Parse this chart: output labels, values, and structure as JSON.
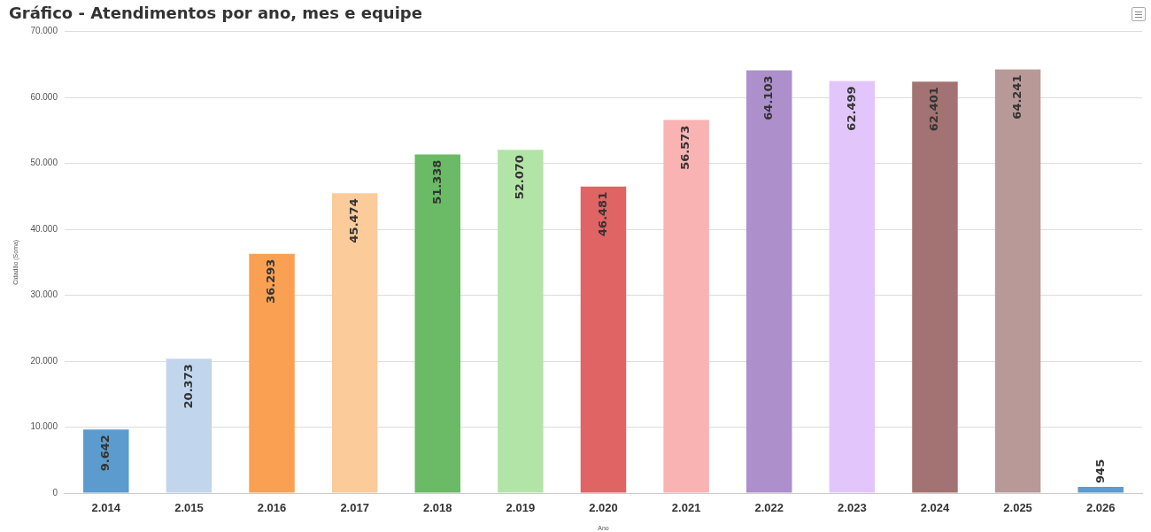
{
  "chart_data": {
    "type": "bar",
    "title": "Gráfico - Atendimentos por ano, mes e equipe",
    "xlabel": "Ano",
    "ylabel": "Cidadão (Soma)",
    "categories": [
      "2.014",
      "2.015",
      "2.016",
      "2.017",
      "2.018",
      "2.019",
      "2.020",
      "2.021",
      "2.022",
      "2.023",
      "2.024",
      "2.025",
      "2.026"
    ],
    "values": [
      9642,
      20373,
      36293,
      45474,
      51338,
      52070,
      46481,
      56573,
      64103,
      62499,
      62401,
      64241,
      945
    ],
    "value_labels": [
      "9.642",
      "20.373",
      "36.293",
      "45.474",
      "51.338",
      "52.070",
      "46.481",
      "56.573",
      "64.103",
      "62.499",
      "62.401",
      "64.241",
      "945"
    ],
    "colors": [
      "#5b9bcd",
      "#c1d6ec",
      "#f9a052",
      "#fbcb99",
      "#6aba66",
      "#b3e4a7",
      "#e06464",
      "#f9b3b3",
      "#ad8fcb",
      "#e2c6fb",
      "#a37272",
      "#b99898",
      "#5b9bcd"
    ],
    "ylim": [
      0,
      70000
    ],
    "yticks": [
      {
        "value": 0,
        "label": "0"
      },
      {
        "value": 10000,
        "label": "10.000"
      },
      {
        "value": 20000,
        "label": "20.000"
      },
      {
        "value": 30000,
        "label": "30.000"
      },
      {
        "value": 40000,
        "label": "40.000"
      },
      {
        "value": 50000,
        "label": "50.000"
      },
      {
        "value": 60000,
        "label": "60.000"
      },
      {
        "value": 70000,
        "label": "70.000"
      }
    ],
    "grid": "y",
    "legend": false
  }
}
